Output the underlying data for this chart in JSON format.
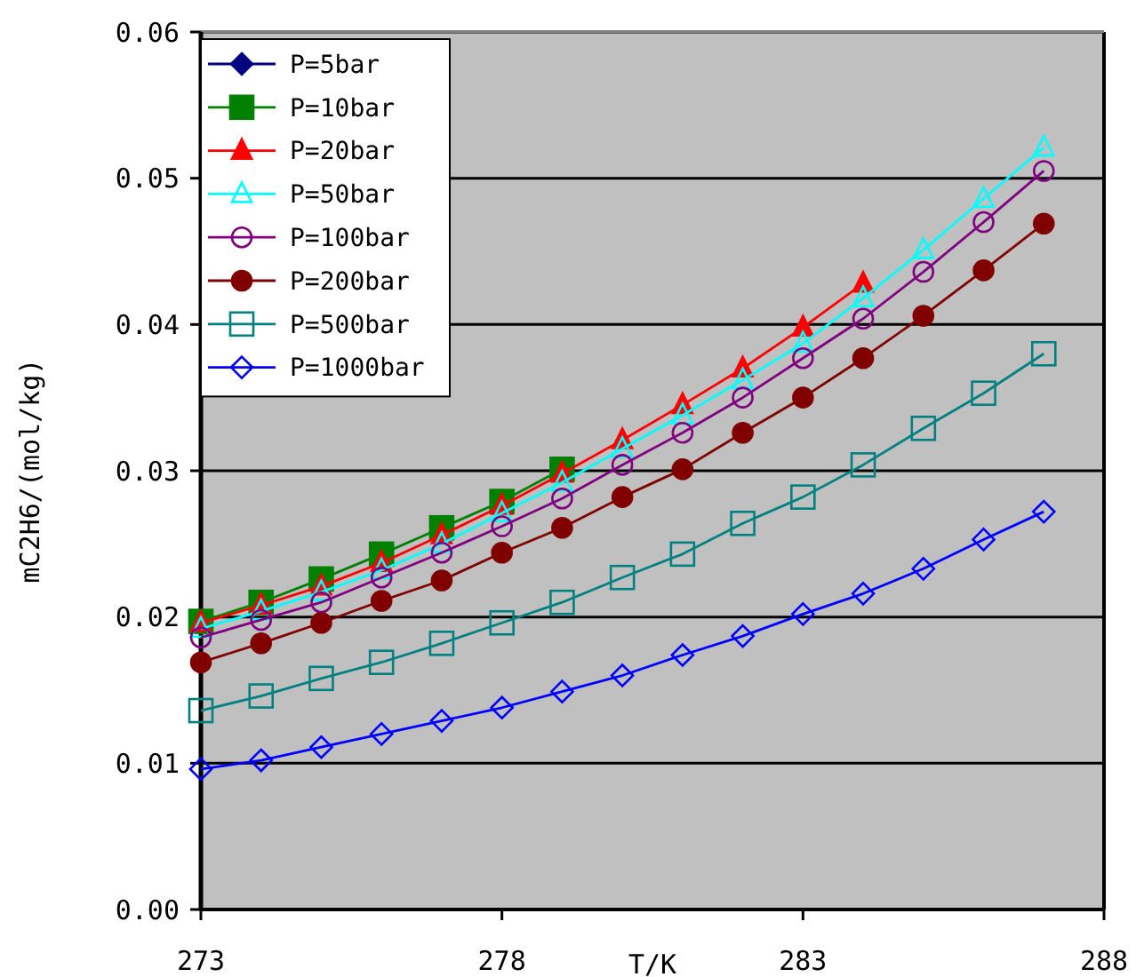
{
  "chart_data": {
    "type": "line",
    "xlabel": "T/K",
    "ylabel": "mC2H6/(mol/kg)",
    "x": [
      273,
      274,
      275,
      276,
      277,
      278,
      279,
      280,
      281,
      282,
      283,
      284,
      285,
      286,
      287
    ],
    "xlim": [
      273,
      288
    ],
    "xticks": [
      273,
      278,
      283,
      288
    ],
    "ylim": [
      0,
      0.06
    ],
    "yticks": [
      {
        "value": 0,
        "label": "0.00"
      },
      {
        "value": 0.01,
        "label": "0.01"
      },
      {
        "value": 0.02,
        "label": "0.02"
      },
      {
        "value": 0.03,
        "label": "0.03"
      },
      {
        "value": 0.04,
        "label": "0.04"
      },
      {
        "value": 0.05,
        "label": "0.05"
      },
      {
        "value": 0.06,
        "label": "0.06"
      }
    ],
    "grid": "y",
    "legend": "top left",
    "series": [
      {
        "name": "P=5bar",
        "color": "#000080",
        "marker": "diamond",
        "values": [
          null,
          null,
          null,
          null,
          null,
          null,
          null,
          null,
          null,
          null,
          null,
          null,
          null,
          null,
          null
        ]
      },
      {
        "name": "P=10bar",
        "color": "#008000",
        "marker": "square",
        "values": [
          0.0197,
          0.021,
          0.0226,
          0.0243,
          0.0261,
          0.0279,
          0.0301,
          null,
          null,
          null,
          null,
          null,
          null,
          null,
          null
        ]
      },
      {
        "name": "P=20bar",
        "color": "#ff0000",
        "marker": "triangle",
        "values": [
          0.0196,
          0.0208,
          0.0221,
          0.0237,
          0.0256,
          0.0276,
          0.0298,
          0.0321,
          0.0345,
          0.037,
          0.0398,
          0.0428,
          null,
          null,
          null
        ]
      },
      {
        "name": "P=50bar",
        "color": "#00ffff",
        "marker": "triangle",
        "values": [
          0.0192,
          0.0204,
          0.0217,
          0.0232,
          0.025,
          0.0271,
          0.0292,
          0.0315,
          0.0338,
          0.0362,
          0.0387,
          0.0418,
          0.0451,
          0.0486,
          0.0521
        ]
      },
      {
        "name": "P=100bar",
        "color": "#800080",
        "marker": "circle",
        "values": [
          0.0186,
          0.0198,
          0.021,
          0.0227,
          0.0244,
          0.0262,
          0.0281,
          0.0304,
          0.0326,
          0.035,
          0.0377,
          0.0404,
          0.0436,
          0.047,
          0.0505
        ]
      },
      {
        "name": "P=200bar",
        "color": "#800000",
        "marker": "circle",
        "values": [
          0.0169,
          0.0182,
          0.0196,
          0.0211,
          0.0225,
          0.0244,
          0.0261,
          0.0282,
          0.0301,
          0.0326,
          0.035,
          0.0377,
          0.0406,
          0.0437,
          0.0469
        ]
      },
      {
        "name": "P=500bar",
        "color": "#008080",
        "marker": "square",
        "values": [
          0.0136,
          0.0146,
          0.0158,
          0.0169,
          0.0182,
          0.0196,
          0.021,
          0.0227,
          0.0243,
          0.0264,
          0.0282,
          0.0304,
          0.0329,
          0.0353,
          0.038
        ]
      },
      {
        "name": "P=1000bar",
        "color": "#0000ff",
        "marker": "diamond",
        "values": [
          0.0096,
          0.0102,
          0.0111,
          0.012,
          0.0129,
          0.0138,
          0.0149,
          0.016,
          0.0174,
          0.0187,
          0.0202,
          0.0216,
          0.0233,
          0.0253,
          0.0272
        ]
      }
    ]
  }
}
